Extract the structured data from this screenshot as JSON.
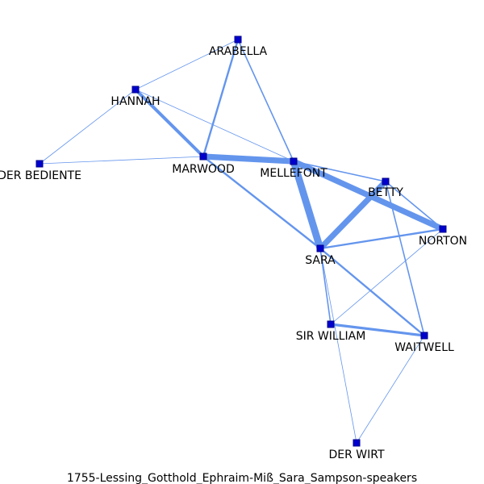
{
  "caption": "1755-Lessing_Gotthold_Ephraim-Miß_Sara_Sampson-speakers",
  "colors": {
    "edge": "#6495ed",
    "node": "#0000cd"
  },
  "nodes": [
    {
      "id": "arabella",
      "label": "ARABELLA"
    },
    {
      "id": "hannah",
      "label": "HANNAH"
    },
    {
      "id": "der_bediente",
      "label": "DER BEDIENTE"
    },
    {
      "id": "marwood",
      "label": "MARWOOD"
    },
    {
      "id": "mellefont",
      "label": "MELLEFONT"
    },
    {
      "id": "betty",
      "label": "BETTY"
    },
    {
      "id": "norton",
      "label": "NORTON"
    },
    {
      "id": "sara",
      "label": "SARA"
    },
    {
      "id": "sir_william",
      "label": "SIR WILLIAM"
    },
    {
      "id": "waitwell",
      "label": "WAITWELL"
    },
    {
      "id": "der_wirt",
      "label": "DER WIRT"
    }
  ],
  "edges": [
    {
      "source": "arabella",
      "target": "hannah",
      "weight": 1
    },
    {
      "source": "arabella",
      "target": "marwood",
      "weight": 3
    },
    {
      "source": "arabella",
      "target": "mellefont",
      "weight": 2
    },
    {
      "source": "hannah",
      "target": "der_bediente",
      "weight": 1
    },
    {
      "source": "hannah",
      "target": "marwood",
      "weight": 5
    },
    {
      "source": "hannah",
      "target": "mellefont",
      "weight": 1
    },
    {
      "source": "der_bediente",
      "target": "marwood",
      "weight": 1
    },
    {
      "source": "marwood",
      "target": "mellefont",
      "weight": 9
    },
    {
      "source": "marwood",
      "target": "sara",
      "weight": 3
    },
    {
      "source": "mellefont",
      "target": "sara",
      "weight": 11
    },
    {
      "source": "mellefont",
      "target": "betty",
      "weight": 2
    },
    {
      "source": "mellefont",
      "target": "norton",
      "weight": 9
    },
    {
      "source": "betty",
      "target": "sara",
      "weight": 9
    },
    {
      "source": "betty",
      "target": "norton",
      "weight": 2
    },
    {
      "source": "betty",
      "target": "waitwell",
      "weight": 2
    },
    {
      "source": "sara",
      "target": "norton",
      "weight": 3
    },
    {
      "source": "sara",
      "target": "sir_william",
      "weight": 2
    },
    {
      "source": "sara",
      "target": "waitwell",
      "weight": 3
    },
    {
      "source": "sara",
      "target": "der_wirt",
      "weight": 1
    },
    {
      "source": "norton",
      "target": "sir_william",
      "weight": 1
    },
    {
      "source": "sir_william",
      "target": "waitwell",
      "weight": 4
    },
    {
      "source": "waitwell",
      "target": "der_wirt",
      "weight": 1
    }
  ]
}
